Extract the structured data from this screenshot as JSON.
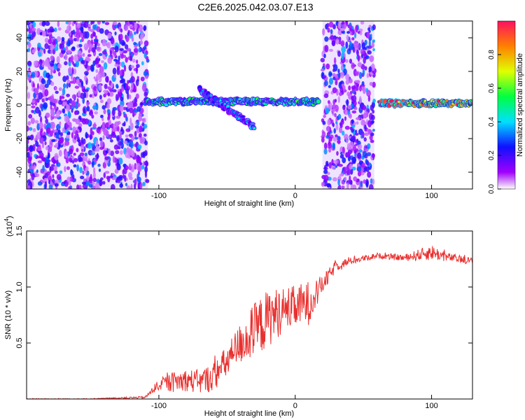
{
  "figure": {
    "title": "C2E6.2025.042.03.07.E13"
  },
  "chart_data": [
    {
      "type": "heatmap",
      "xlabel": "Height of straight line (km)",
      "ylabel": "Frequency (Hz)",
      "xlim": [
        -197,
        130
      ],
      "ylim": [
        -50,
        50
      ],
      "xticks": [
        -100,
        0,
        100
      ],
      "yticks": [
        -40,
        -20,
        0,
        20,
        40
      ],
      "colorbar": {
        "label": "Normalized spectral amplitude",
        "range": [
          0,
          1
        ],
        "ticks": [
          0.0,
          0.2,
          0.4,
          0.6,
          0.8
        ]
      },
      "regions": [
        {
          "kind": "noise",
          "x": [
            -197,
            -108
          ],
          "y": [
            -50,
            50
          ]
        },
        {
          "kind": "noise",
          "x": [
            20,
            58
          ],
          "y": [
            -50,
            50
          ]
        },
        {
          "kind": "carrier",
          "x": [
            -110,
            17
          ],
          "y_start": 2,
          "y_end": 2,
          "amplitude": 0.55
        },
        {
          "kind": "carrier",
          "x": [
            -70,
            -30
          ],
          "y_start": 9,
          "y_end": -13,
          "amplitude": 0.4
        },
        {
          "kind": "carrier",
          "x": [
            62,
            130
          ],
          "y_start": 1,
          "y_end": 1,
          "amplitude": 0.95
        }
      ]
    },
    {
      "type": "line",
      "xlabel": "Height of straight line (km)",
      "ylabel": "SNR (10 * v/v)",
      "y_multiplier": "(x10",
      "y_multiplier_exp": "4",
      "xlim": [
        -197,
        130
      ],
      "ylim": [
        0,
        15000
      ],
      "xticks": [
        -100,
        0,
        100
      ],
      "yticks": [
        5000,
        10000,
        15000
      ],
      "ytick_labels": [
        "0.5",
        "1.0",
        "1.5"
      ],
      "series": [
        {
          "color": "#e8302e",
          "x": [
            -197,
            -150,
            -110,
            -100,
            -90,
            -80,
            -70,
            -60,
            -50,
            -40,
            -30,
            -20,
            -10,
            0,
            10,
            20,
            30,
            40,
            60,
            80,
            100,
            110,
            130
          ],
          "y": [
            0,
            0,
            150,
            1300,
            1500,
            1700,
            1500,
            2000,
            3300,
            5000,
            6000,
            7200,
            7900,
            8200,
            8600,
            10200,
            11900,
            12300,
            12800,
            12600,
            13100,
            12700,
            12300
          ],
          "noise": [
            50,
            50,
            100,
            500,
            900,
            1000,
            1100,
            1300,
            1500,
            1900,
            2600,
            2600,
            2100,
            1900,
            2000,
            800,
            500,
            300,
            250,
            300,
            700,
            400,
            300
          ]
        }
      ]
    }
  ]
}
